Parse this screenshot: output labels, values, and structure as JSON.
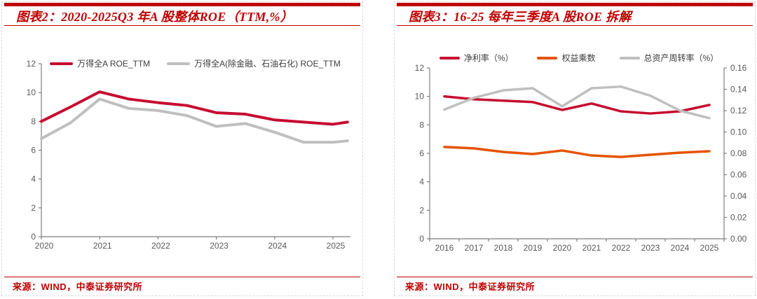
{
  "colors": {
    "accent": "#c00000",
    "axis_line": "#7f7f7f",
    "tick_text": "#595959",
    "legend_text": "#3d3d3d",
    "crimson_series": "#c60c30",
    "orange_series": "#e55300",
    "gray_series": "#bfbfbf"
  },
  "panels": [
    {
      "title": "图表2：2020-2025Q3 年A 股整体ROE（TTM,%）",
      "source": "来源：WIND，中泰证券研究所",
      "chart_data": {
        "type": "line",
        "title": "2020-2025Q3 年A 股整体ROE（TTM,%）",
        "x": [
          2020,
          2020.5,
          2021,
          2021.5,
          2022,
          2022.5,
          2023,
          2023.5,
          2024,
          2024.5,
          2025,
          2025.25
        ],
        "x_ticks": [
          2020,
          2021,
          2022,
          2023,
          2024,
          2025
        ],
        "x_tick_labels": [
          "2020",
          "2021",
          "2022",
          "2023",
          "2024",
          "2025"
        ],
        "ylim": [
          0,
          12
        ],
        "y_ticks": [
          0,
          2,
          4,
          6,
          8,
          10,
          12
        ],
        "grid": false,
        "legend_position": "top",
        "series": [
          {
            "name": "万得全A ROE_TTM",
            "color": "#c60c30",
            "axis": "left",
            "values": [
              8.0,
              9.0,
              10.05,
              9.55,
              9.3,
              9.1,
              8.6,
              8.5,
              8.1,
              7.95,
              7.8,
              7.95
            ]
          },
          {
            "name": "万得全A(除金融、石油石化) ROE_TTM",
            "color": "#bfbfbf",
            "axis": "left",
            "values": [
              6.8,
              7.9,
              9.55,
              8.9,
              8.75,
              8.4,
              7.65,
              7.85,
              7.25,
              6.55,
              6.55,
              6.65
            ]
          }
        ]
      }
    },
    {
      "title": "图表3：16-25 每年三季度A 股ROE 拆解",
      "source": "来源：WIND，中泰证券研究所",
      "chart_data": {
        "type": "line",
        "title": "16-25 每年三季度A 股ROE 拆解",
        "categories": [
          "2016",
          "2017",
          "2018",
          "2019",
          "2020",
          "2021",
          "2022",
          "2023",
          "2024",
          "2025"
        ],
        "ylim_left": [
          0,
          12
        ],
        "y_ticks_left": [
          0,
          2,
          4,
          6,
          8,
          10,
          12
        ],
        "ylim_right": [
          0,
          0.16
        ],
        "y_ticks_right": [
          0,
          0.02,
          0.04,
          0.06,
          0.08,
          0.1,
          0.12,
          0.14,
          0.16
        ],
        "grid": false,
        "legend_position": "top",
        "series": [
          {
            "name": "净利率（%）",
            "color": "#c60c30",
            "axis": "left",
            "values": [
              10.0,
              9.8,
              9.7,
              9.6,
              9.05,
              9.5,
              8.95,
              8.8,
              8.95,
              9.4
            ]
          },
          {
            "name": "权益乘数",
            "color": "#e55300",
            "axis": "left",
            "values": [
              6.45,
              6.35,
              6.1,
              5.95,
              6.2,
              5.85,
              5.75,
              5.9,
              6.05,
              6.15
            ]
          },
          {
            "name": "总资产周转率（%）",
            "color": "#bfbfbf",
            "axis": "right",
            "values": [
              0.121,
              0.132,
              0.139,
              0.141,
              0.124,
              0.141,
              0.1425,
              0.134,
              0.12,
              0.113
            ]
          }
        ]
      }
    }
  ]
}
